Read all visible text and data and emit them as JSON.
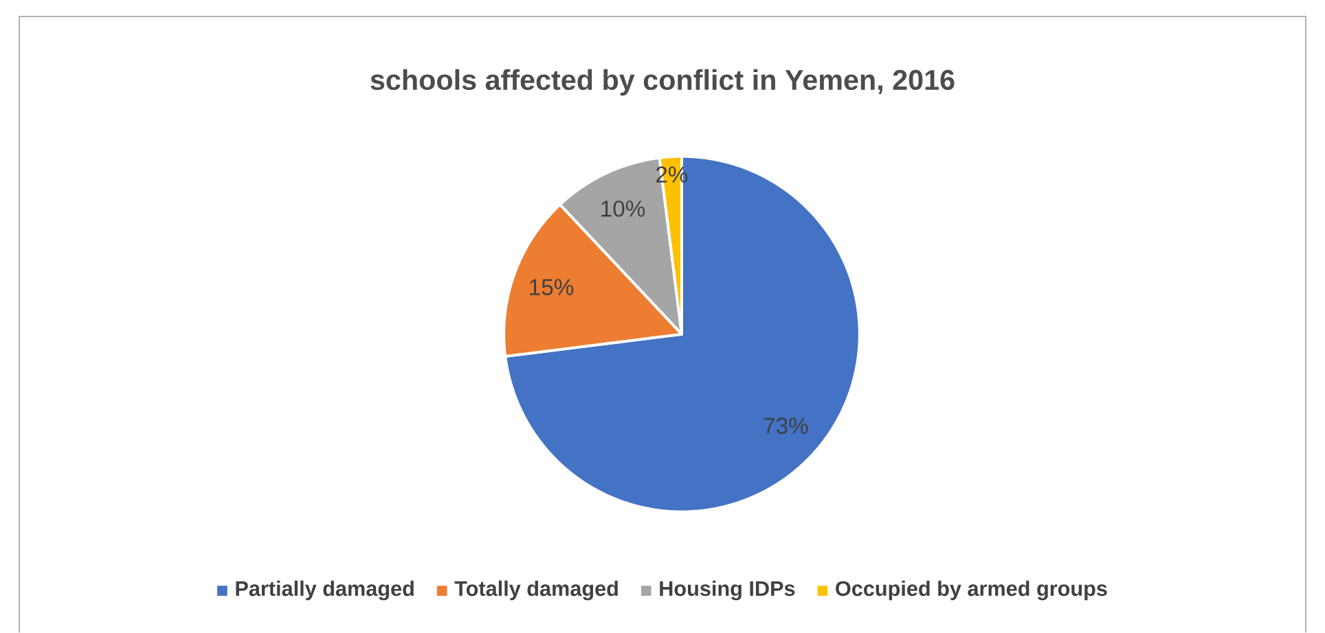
{
  "chart_data": {
    "type": "pie",
    "title": "schools affected by conflict in Yemen, 2016",
    "categories": [
      "Partially damaged",
      "Totally damaged",
      "Housing IDPs",
      "Occupied by armed groups"
    ],
    "values": [
      73,
      15,
      10,
      2
    ],
    "colors": [
      "#4472c4",
      "#ed7d31",
      "#a5a5a5",
      "#ffc000"
    ],
    "value_labels": [
      "73%",
      "15%",
      "10%",
      "2%"
    ],
    "legend": "bottom"
  }
}
